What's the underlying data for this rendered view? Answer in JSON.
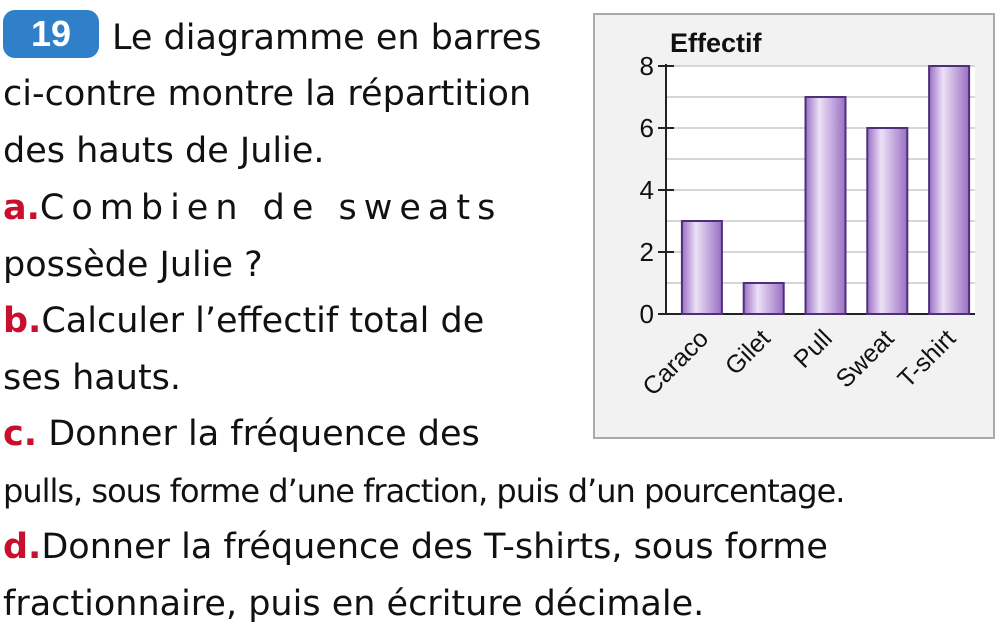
{
  "exercise": {
    "number": "19",
    "intro": [
      "Le diagramme en barres",
      "ci-contre montre la répartition",
      "des hauts de Julie."
    ],
    "questions": [
      {
        "label": "a.",
        "lines": [
          "Combien de sweats",
          "possède Julie ?"
        ]
      },
      {
        "label": "b.",
        "lines": [
          "Calculer l’effectif total de",
          "ses hauts."
        ]
      },
      {
        "label": "c.",
        "lines": [
          "Donner la fréquence des",
          "pulls, sous forme d’une fraction, puis d’un pourcentage."
        ]
      },
      {
        "label": "d.",
        "lines": [
          "Donner la fréquence des T-shirts, sous forme",
          "fractionnaire, puis en écriture décimale."
        ]
      }
    ]
  },
  "chart_data": {
    "type": "bar",
    "title": "Effectif",
    "categories": [
      "Caraco",
      "Gilet",
      "Pull",
      "Sweat",
      "T-shirt"
    ],
    "values": [
      3,
      1,
      7,
      6,
      8
    ],
    "ylim": [
      0,
      8
    ],
    "yticks": [
      "0",
      "2",
      "4",
      "6",
      "8"
    ],
    "grid": true,
    "colors": {
      "bar_light": "#ece1f6",
      "bar_dark": "#9a6fc4",
      "bar_edge": "#4e2f7a",
      "panel_bg": "#f2f2f2",
      "panel_border": "#aaaaaa"
    }
  }
}
